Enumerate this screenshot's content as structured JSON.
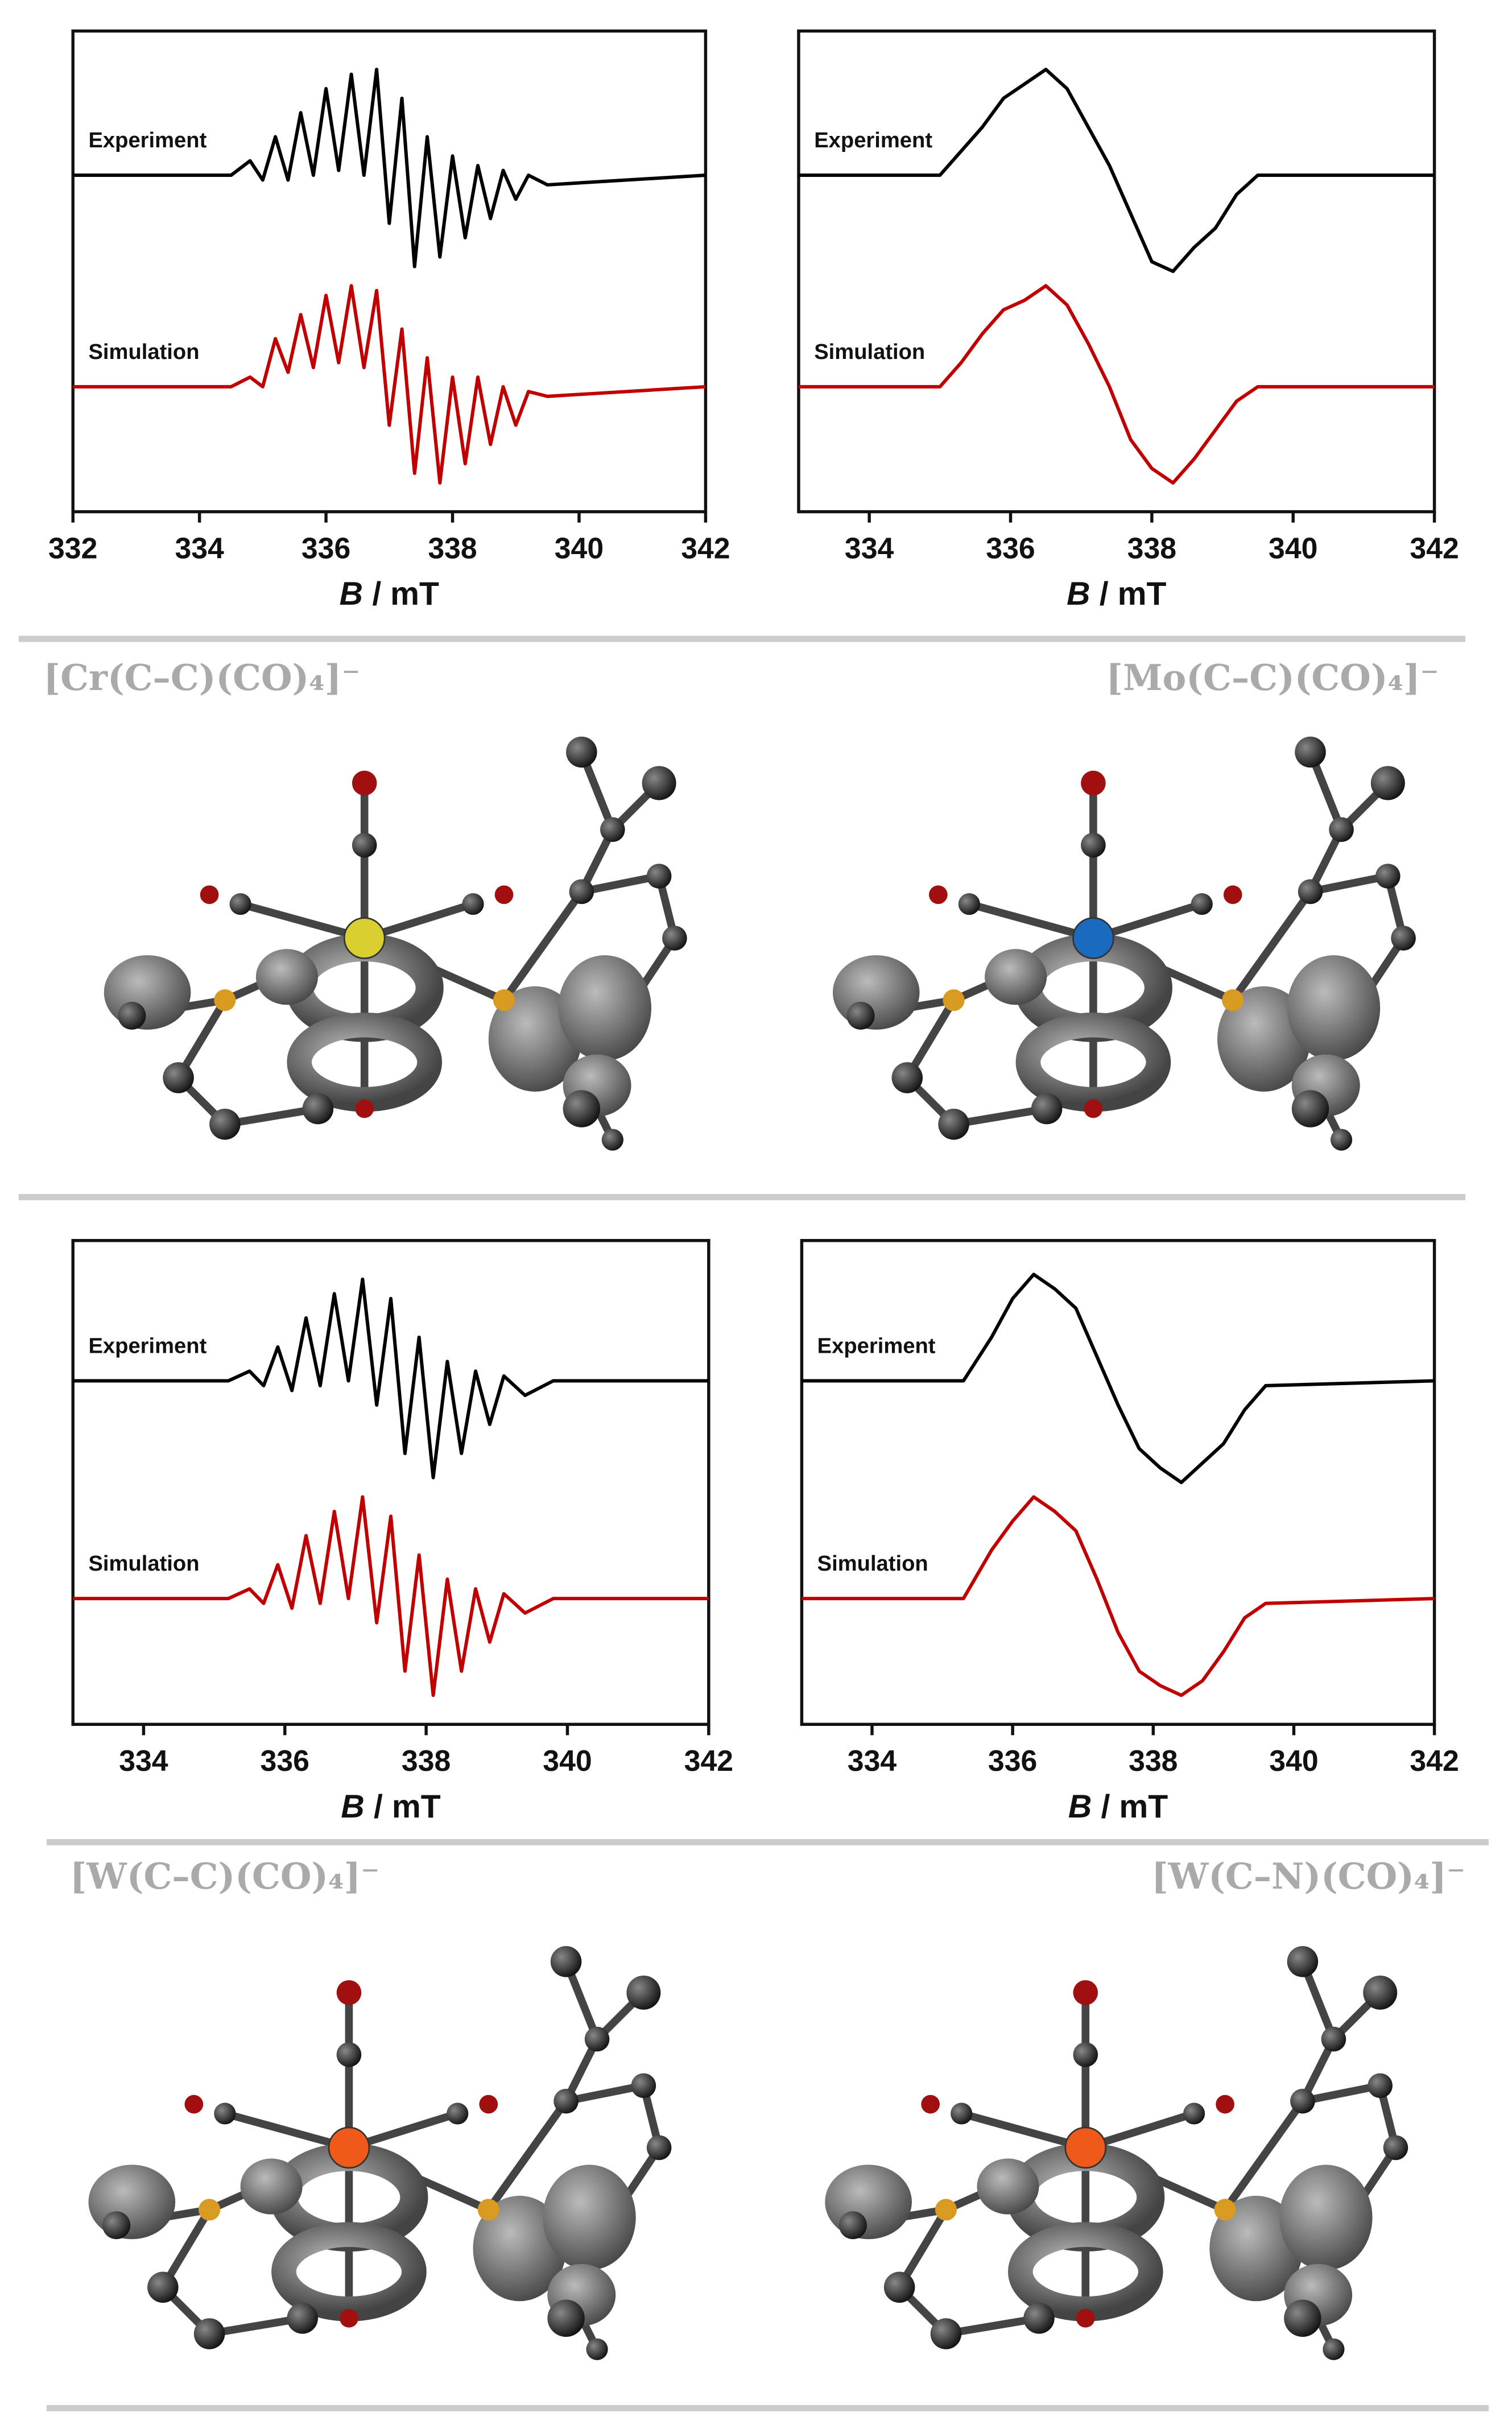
{
  "chart_data": [
    {
      "type": "line",
      "compound": "[Cr(C–C)(CO)₄]⁻",
      "xlabel_symbol": "B",
      "xlabel_unit": "/ mT",
      "xlim": [
        332,
        342
      ],
      "xticks": [
        332,
        334,
        336,
        338,
        340,
        342
      ],
      "ylim": [
        0,
        10
      ],
      "x": [
        332,
        334.5,
        334.8,
        335.0,
        335.2,
        335.4,
        335.6,
        335.8,
        336.0,
        336.2,
        336.4,
        336.6,
        336.8,
        337.0,
        337.2,
        337.4,
        337.6,
        337.8,
        338.0,
        338.2,
        338.4,
        338.6,
        338.8,
        339.0,
        339.2,
        339.5,
        342
      ],
      "series": [
        {
          "name": "Experiment",
          "color": "#000000",
          "values": [
            7.0,
            7.0,
            7.3,
            6.9,
            7.8,
            6.9,
            8.3,
            7.0,
            8.8,
            7.1,
            9.1,
            7.0,
            9.2,
            6.0,
            8.6,
            5.1,
            7.8,
            5.3,
            7.4,
            5.7,
            7.2,
            6.1,
            7.1,
            6.5,
            7.0,
            6.8,
            7.0
          ]
        },
        {
          "name": "Simulation",
          "color": "#c00000",
          "values": [
            2.6,
            2.6,
            2.8,
            2.6,
            3.6,
            2.9,
            4.1,
            3.0,
            4.5,
            3.1,
            4.7,
            3.0,
            4.6,
            1.8,
            3.8,
            0.8,
            3.2,
            0.6,
            2.8,
            1.0,
            2.8,
            1.4,
            2.6,
            1.8,
            2.5,
            2.4,
            2.6
          ]
        }
      ]
    },
    {
      "type": "line",
      "compound": "[Mo(C–C)(CO)₄]⁻",
      "xlabel_symbol": "B",
      "xlabel_unit": "/ mT",
      "xlim": [
        333,
        342
      ],
      "xticks": [
        334,
        336,
        338,
        340,
        342
      ],
      "ylim": [
        0,
        10
      ],
      "x": [
        333,
        335.0,
        335.3,
        335.6,
        335.9,
        336.2,
        336.5,
        336.8,
        337.1,
        337.4,
        337.7,
        338.0,
        338.3,
        338.6,
        338.9,
        339.2,
        339.5,
        342
      ],
      "series": [
        {
          "name": "Experiment",
          "color": "#000000",
          "values": [
            7.0,
            7.0,
            7.5,
            8.0,
            8.6,
            8.9,
            9.2,
            8.8,
            8.0,
            7.2,
            6.2,
            5.2,
            5.0,
            5.5,
            5.9,
            6.6,
            7.0,
            7.0
          ]
        },
        {
          "name": "Simulation",
          "color": "#c00000",
          "values": [
            2.6,
            2.6,
            3.1,
            3.7,
            4.2,
            4.4,
            4.7,
            4.3,
            3.5,
            2.6,
            1.5,
            0.9,
            0.6,
            1.1,
            1.7,
            2.3,
            2.6,
            2.6
          ]
        }
      ]
    },
    {
      "type": "line",
      "compound": "[W(C–C)(CO)₄]⁻",
      "xlabel_symbol": "B",
      "xlabel_unit": "/ mT",
      "xlim": [
        333,
        342
      ],
      "xticks": [
        334,
        336,
        338,
        340,
        342
      ],
      "ylim": [
        0,
        10
      ],
      "x": [
        333,
        335.2,
        335.5,
        335.7,
        335.9,
        336.1,
        336.3,
        336.5,
        336.7,
        336.9,
        337.1,
        337.3,
        337.5,
        337.7,
        337.9,
        338.1,
        338.3,
        338.5,
        338.7,
        338.9,
        339.1,
        339.4,
        339.8,
        342
      ],
      "series": [
        {
          "name": "Experiment",
          "color": "#000000",
          "values": [
            7.1,
            7.1,
            7.3,
            7.0,
            7.8,
            6.9,
            8.4,
            7.0,
            8.9,
            7.1,
            9.2,
            6.6,
            8.8,
            5.6,
            8.0,
            5.1,
            7.5,
            5.6,
            7.3,
            6.2,
            7.2,
            6.8,
            7.1,
            7.1
          ]
        },
        {
          "name": "Simulation",
          "color": "#c00000",
          "values": [
            2.6,
            2.6,
            2.8,
            2.5,
            3.3,
            2.4,
            3.9,
            2.5,
            4.4,
            2.6,
            4.7,
            2.1,
            4.3,
            1.1,
            3.5,
            0.6,
            3.0,
            1.1,
            2.8,
            1.7,
            2.7,
            2.3,
            2.6,
            2.6
          ]
        }
      ]
    },
    {
      "type": "line",
      "compound": "[W(C–N)(CO)₄]⁻",
      "xlabel_symbol": "B",
      "xlabel_unit": "/ mT",
      "xlim": [
        333,
        342
      ],
      "xticks": [
        334,
        336,
        338,
        340,
        342
      ],
      "ylim": [
        0,
        10
      ],
      "x": [
        333,
        335.3,
        335.7,
        336.0,
        336.3,
        336.6,
        336.9,
        337.2,
        337.5,
        337.8,
        338.1,
        338.4,
        338.7,
        339.0,
        339.3,
        339.6,
        342
      ],
      "series": [
        {
          "name": "Experiment",
          "color": "#000000",
          "values": [
            7.1,
            7.1,
            8.0,
            8.8,
            9.3,
            9.0,
            8.6,
            7.6,
            6.6,
            5.7,
            5.3,
            5.0,
            5.4,
            5.8,
            6.5,
            7.0,
            7.1
          ]
        },
        {
          "name": "Simulation",
          "color": "#c00000",
          "values": [
            2.6,
            2.6,
            3.6,
            4.2,
            4.7,
            4.4,
            4.0,
            3.0,
            1.9,
            1.1,
            0.8,
            0.6,
            0.9,
            1.5,
            2.2,
            2.5,
            2.6
          ]
        }
      ]
    }
  ]
}
